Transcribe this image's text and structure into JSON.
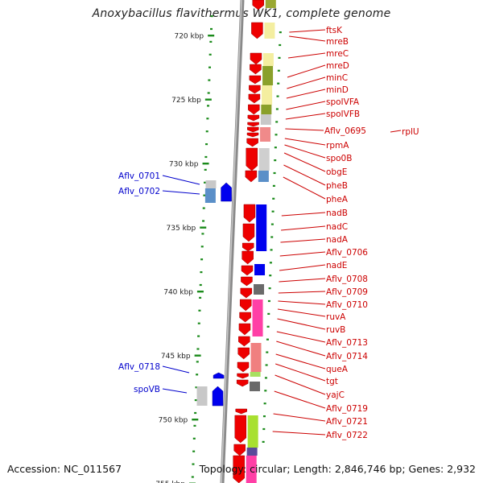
{
  "title": "Anoxybacillus flavithermus WK1, complete genome",
  "footer": {
    "accession": "Accession: NC_011567",
    "summary": "Topology: circular; Length: 2,846,746 bp; Genes: 2,932"
  },
  "colors": {
    "scale_ticks": "#1a8a1a",
    "forward_label": "#0000cc",
    "reverse_label": "#cc0000",
    "backbone": "#888888",
    "reverse_gene": "#ee0000",
    "forward_gene": "#0000ee"
  },
  "scale": {
    "unit": "kbp",
    "ticks": [
      720,
      725,
      730,
      735,
      740,
      745,
      750,
      755
    ]
  },
  "left_genes": [
    {
      "name": "Aflv_0701"
    },
    {
      "name": "Aflv_0702"
    },
    {
      "name": "Aflv_0718"
    },
    {
      "name": "spoVB"
    }
  ],
  "right_genes": [
    {
      "name": "ftsK"
    },
    {
      "name": "mreB"
    },
    {
      "name": "mreC"
    },
    {
      "name": "mreD"
    },
    {
      "name": "minC"
    },
    {
      "name": "minD"
    },
    {
      "name": "spoIVFA"
    },
    {
      "name": "spoIVFB"
    },
    {
      "name": "Aflv_0695"
    },
    {
      "name": "rplU"
    },
    {
      "name": "rpmA"
    },
    {
      "name": "spo0B"
    },
    {
      "name": "obgE"
    },
    {
      "name": "pheB"
    },
    {
      "name": "pheA"
    },
    {
      "name": "nadB"
    },
    {
      "name": "nadC"
    },
    {
      "name": "nadA"
    },
    {
      "name": "Aflv_0706"
    },
    {
      "name": "nadE"
    },
    {
      "name": "Aflv_0708"
    },
    {
      "name": "Aflv_0709"
    },
    {
      "name": "Aflv_0710"
    },
    {
      "name": "ruvA"
    },
    {
      "name": "ruvB"
    },
    {
      "name": "Aflv_0713"
    },
    {
      "name": "Aflv_0714"
    },
    {
      "name": "queA"
    },
    {
      "name": "tgt"
    },
    {
      "name": "yajC"
    },
    {
      "name": "Aflv_0719"
    },
    {
      "name": "Aflv_0721"
    },
    {
      "name": "Aflv_0722"
    }
  ]
}
